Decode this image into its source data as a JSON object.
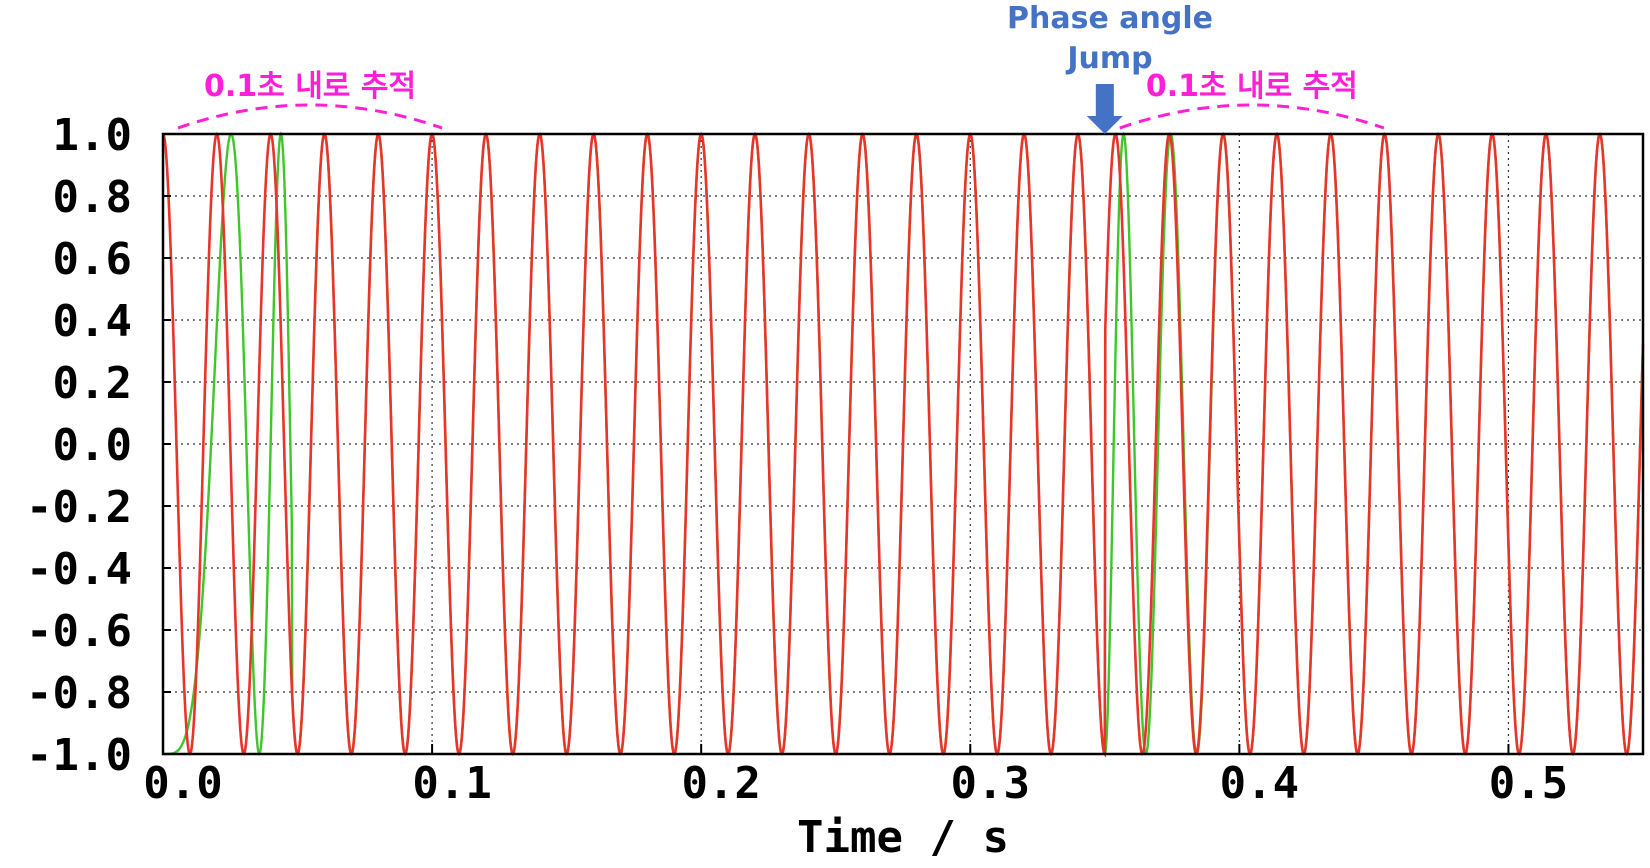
{
  "colors": {
    "reference": "#e8342a",
    "tracking": "#3ec62a",
    "annotation": "#ff1fd6",
    "jump": "#4472c4",
    "grid": "#333333"
  },
  "chart_data": {
    "type": "line",
    "title": "",
    "xlabel": "Time / s",
    "ylabel": "",
    "xlim": [
      0,
      0.55
    ],
    "ylim": [
      -1.0,
      1.0
    ],
    "grid": true,
    "x_ticks": [
      "0.0",
      "0.1",
      "0.2",
      "0.3",
      "0.4",
      "0.5"
    ],
    "x_tick_values": [
      0.0,
      0.1,
      0.2,
      0.3,
      0.4,
      0.5
    ],
    "y_ticks": [
      "1.0",
      "0.8",
      "0.6",
      "0.4",
      "0.2",
      "0.0",
      "-0.2",
      "-0.4",
      "-0.6",
      "-0.8",
      "-1.0"
    ],
    "y_tick_values": [
      1.0,
      0.8,
      0.6,
      0.4,
      0.2,
      0.0,
      -0.2,
      -0.4,
      -0.6,
      -0.8,
      -1.0
    ],
    "series": [
      {
        "color": "#e8342a",
        "kind": "sine",
        "frequency_hz": 50,
        "amplitude": 1.0,
        "phase_jump_time": 0.35
      },
      {
        "color": "#3ec62a",
        "kind": "tracking-sine",
        "frequency_hz": 50,
        "amplitude": 1.0,
        "lock_time": 0.1,
        "relock_time": 0.45
      }
    ],
    "annotations": [
      {
        "text": "0.1초 내로 추적",
        "x_start": 0.0,
        "x_end": 0.1
      },
      {
        "text": "0.1초 내로 추적",
        "x_start": 0.35,
        "x_end": 0.45
      }
    ],
    "jump_annotation": {
      "line1": "Phase angle",
      "line2": "Jump",
      "x": 0.35
    }
  }
}
